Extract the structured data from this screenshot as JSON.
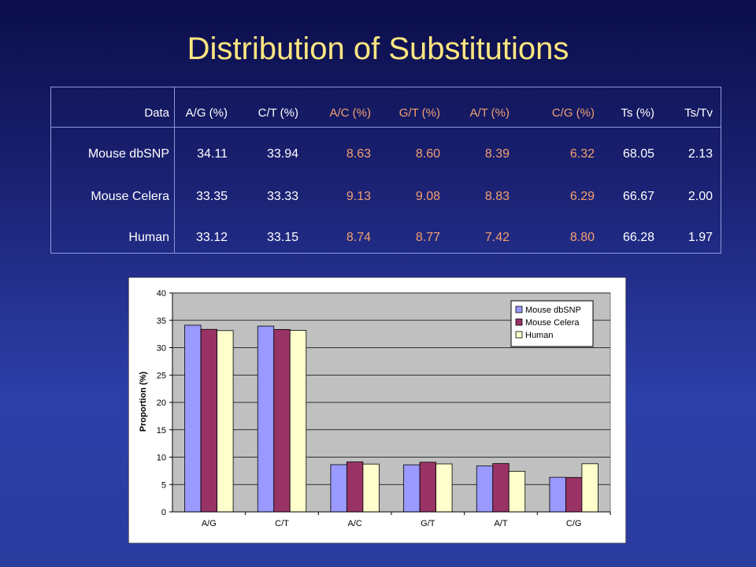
{
  "title": "Distribution of Substitutions",
  "table": {
    "headers": [
      "Data",
      "A/G (%)",
      "C/T (%)",
      "A/C (%)",
      "G/T (%)",
      "A/T (%)",
      "C/G (%)",
      "Ts (%)",
      "Ts/Tv"
    ],
    "rows": [
      {
        "label": "Mouse dbSNP",
        "values": [
          "34.11",
          "33.94",
          "8.63",
          "8.60",
          "8.39",
          "6.32",
          "68.05",
          "2.13"
        ]
      },
      {
        "label": "Mouse Celera",
        "values": [
          "33.35",
          "33.33",
          "9.13",
          "9.08",
          "8.83",
          "6.29",
          "66.67",
          "2.00"
        ]
      },
      {
        "label": "Human",
        "values": [
          "33.12",
          "33.15",
          "8.74",
          "8.77",
          "7.42",
          "8.80",
          "66.28",
          "1.97"
        ]
      }
    ],
    "colors": {
      "text": "#ffffff",
      "highlight": "#f4a070"
    }
  },
  "chart_data": {
    "type": "bar",
    "categories": [
      "A/G",
      "C/T",
      "A/C",
      "G/T",
      "A/T",
      "C/G"
    ],
    "series": [
      {
        "name": "Mouse dbSNP",
        "values": [
          34.11,
          33.94,
          8.63,
          8.6,
          8.39,
          6.32
        ],
        "color": "#9999ff"
      },
      {
        "name": "Mouse Celera",
        "values": [
          33.35,
          33.33,
          9.13,
          9.08,
          8.83,
          6.29
        ],
        "color": "#993366"
      },
      {
        "name": "Human",
        "values": [
          33.12,
          33.15,
          8.74,
          8.77,
          7.42,
          8.8
        ],
        "color": "#ffffcc"
      }
    ],
    "ylabel": "Proportion (%)",
    "xlabel": "",
    "ylim": [
      0,
      40
    ],
    "yticks": [
      "0",
      "5",
      "10",
      "15",
      "20",
      "25",
      "30",
      "35",
      "40"
    ],
    "grid": true,
    "legend": "top-right",
    "plot_background": "#c0c0c0"
  }
}
